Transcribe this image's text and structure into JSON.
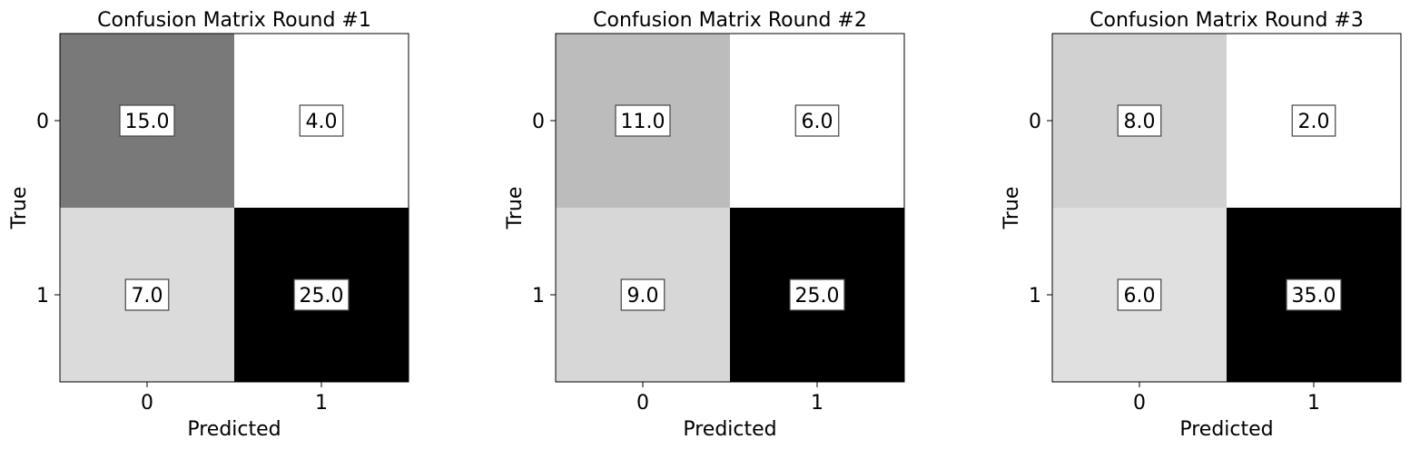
{
  "chart_data": [
    {
      "type": "heatmap",
      "title": "Confusion Matrix Round #1",
      "xlabel": "Predicted",
      "ylabel": "True",
      "x_ticks": [
        "0",
        "1"
      ],
      "y_ticks": [
        "0",
        "1"
      ],
      "values": [
        [
          15.0,
          4.0
        ],
        [
          7.0,
          25.0
        ]
      ],
      "labels": [
        [
          "15.0",
          "4.0"
        ],
        [
          "7.0",
          "25.0"
        ]
      ],
      "colormap": "grayscale (white = low, black = high)"
    },
    {
      "type": "heatmap",
      "title": "Confusion Matrix Round #2",
      "xlabel": "Predicted",
      "ylabel": "True",
      "x_ticks": [
        "0",
        "1"
      ],
      "y_ticks": [
        "0",
        "1"
      ],
      "values": [
        [
          11.0,
          6.0
        ],
        [
          9.0,
          25.0
        ]
      ],
      "labels": [
        [
          "11.0",
          "6.0"
        ],
        [
          "9.0",
          "25.0"
        ]
      ],
      "colormap": "grayscale (white = low, black = high)"
    },
    {
      "type": "heatmap",
      "title": "Confusion Matrix Round #3",
      "xlabel": "Predicted",
      "ylabel": "True",
      "x_ticks": [
        "0",
        "1"
      ],
      "y_ticks": [
        "0",
        "1"
      ],
      "values": [
        [
          8.0,
          2.0
        ],
        [
          6.0,
          35.0
        ]
      ],
      "labels": [
        [
          "8.0",
          "2.0"
        ],
        [
          "6.0",
          "35.0"
        ]
      ],
      "colormap": "grayscale (white = low, black = high)"
    }
  ]
}
